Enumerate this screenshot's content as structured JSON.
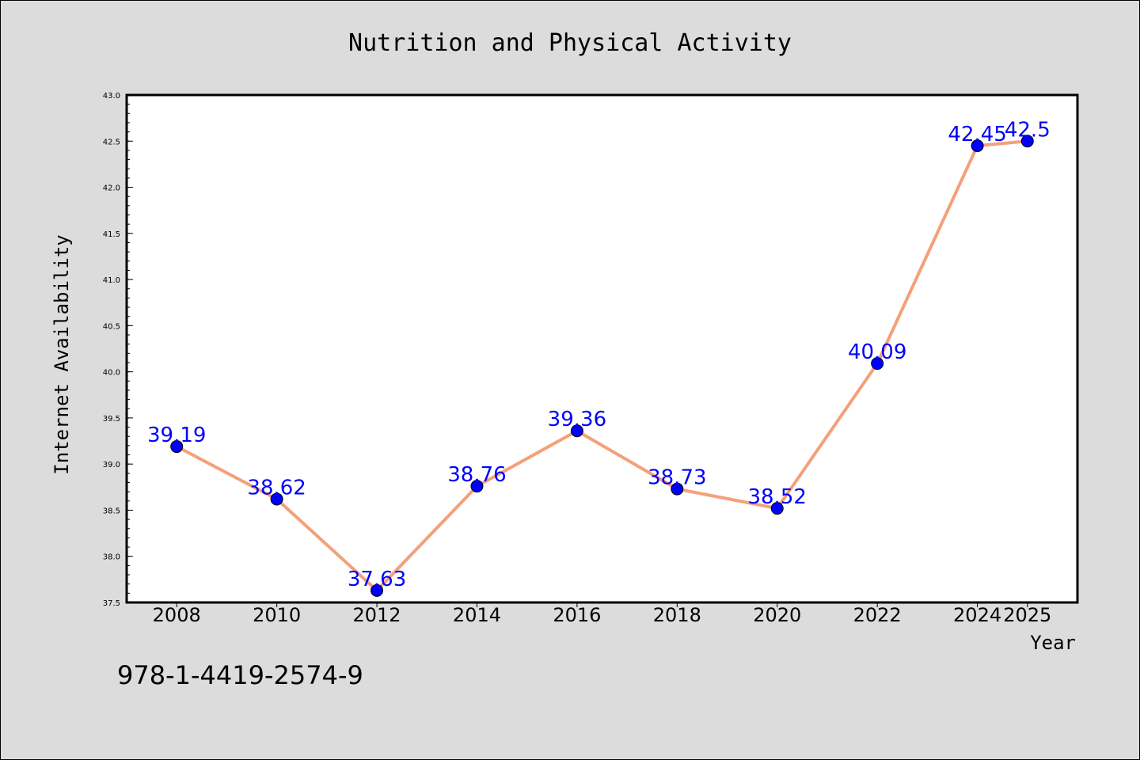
{
  "chart_data": {
    "type": "line",
    "title": "Nutrition and Physical Activity",
    "xlabel": "Year",
    "ylabel": "Internet Availability",
    "categories": [
      "2008",
      "2010",
      "2012",
      "2014",
      "2016",
      "2018",
      "2020",
      "2022",
      "2024",
      "2025"
    ],
    "series": [
      {
        "values": [
          39.19,
          38.62,
          37.63,
          38.76,
          39.36,
          38.73,
          38.52,
          40.09,
          42.45,
          42.5
        ],
        "line_color": "#f4a07a",
        "marker_color": "#0000ff"
      }
    ],
    "data_labels": [
      "39.19",
      "38.62",
      "37.63",
      "38.76",
      "39.36",
      "38.73",
      "38.52",
      "40.09",
      "42.45",
      "42.5"
    ],
    "ylim": [
      37.5,
      43.0
    ],
    "yticks": [
      "37.5",
      "38.0",
      "38.5",
      "39.0",
      "39.5",
      "40.0",
      "40.5",
      "41.0",
      "41.5",
      "42.0",
      "42.5",
      "43.0"
    ],
    "grid": false,
    "label_color": "#0000ff"
  },
  "footer": {
    "isbn": "978-1-4419-2574-9"
  }
}
